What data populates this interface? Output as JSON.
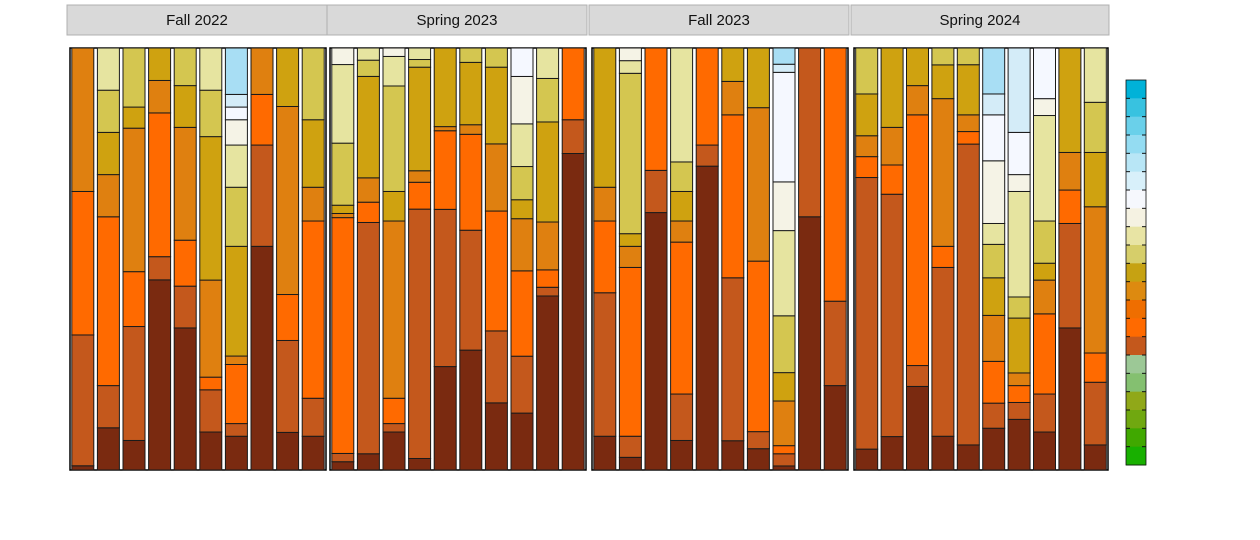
{
  "chart_data": {
    "type": "bar",
    "stacked": true,
    "normalized": true,
    "title": "",
    "xlabel": "",
    "ylabel": "",
    "ylim": [
      0,
      100
    ],
    "facets": [
      {
        "label": "Fall 2022",
        "bars": [
          [
            1,
            31,
            34,
            34
          ],
          [
            10,
            10,
            40,
            10,
            10,
            10,
            10
          ],
          [
            7,
            27,
            13,
            34,
            5,
            14
          ],
          [
            41,
            5,
            31,
            7,
            7
          ],
          [
            34,
            10,
            11,
            27,
            10,
            9
          ],
          [
            9,
            10,
            3,
            23,
            34,
            11,
            10
          ],
          [
            8,
            3,
            14,
            2,
            26,
            14,
            10,
            6,
            3,
            3,
            11
          ],
          [
            53,
            24,
            12,
            11
          ],
          [
            9,
            22,
            11,
            45,
            14
          ],
          [
            8,
            9,
            42,
            8,
            16,
            17
          ]
        ]
      },
      {
        "label": "Spring 2023",
        "bars": [
          [
            2,
            2,
            57,
            1,
            2,
            15,
            19,
            4
          ],
          [
            4,
            57,
            5,
            6,
            25,
            4,
            3
          ],
          [
            9,
            2,
            6,
            42,
            7,
            25,
            7,
            2
          ],
          [
            3,
            65,
            7,
            3,
            27,
            2,
            3
          ],
          [
            25,
            38,
            19,
            1,
            19
          ],
          [
            25,
            25,
            20,
            2,
            13,
            3
          ],
          [
            14,
            15,
            25,
            14,
            16,
            4
          ],
          [
            12,
            12,
            18,
            11,
            4,
            7,
            9,
            10,
            6
          ],
          [
            40,
            2,
            4,
            11,
            23,
            10,
            7
          ],
          [
            75,
            8,
            17
          ]
        ]
      },
      {
        "label": "Fall 2023",
        "bars": [
          [
            8,
            34,
            17,
            8,
            33
          ],
          [
            3,
            5,
            40,
            5,
            3,
            38,
            3,
            3
          ],
          [
            61,
            10,
            29
          ],
          [
            7,
            11,
            36,
            5,
            7,
            7,
            27
          ],
          [
            72,
            5,
            23
          ],
          [
            7,
            39,
            39,
            8,
            8
          ],
          [
            5,
            4,
            40,
            36,
            14
          ],
          [
            1,
            3,
            2,
            11,
            7,
            14,
            21,
            12,
            27,
            2,
            4
          ],
          [
            60,
            40
          ],
          [
            20,
            20,
            60
          ]
        ]
      },
      {
        "label": "Spring 2024",
        "bars": [
          [
            5,
            65,
            5,
            5,
            10,
            11
          ],
          [
            8,
            58,
            7,
            9,
            19
          ],
          [
            20,
            5,
            60,
            7,
            9
          ],
          [
            8,
            40,
            5,
            35,
            8,
            4
          ],
          [
            6,
            72,
            3,
            4,
            12,
            4
          ],
          [
            10,
            6,
            10,
            11,
            9,
            8,
            5,
            15,
            11,
            5,
            11
          ],
          [
            12,
            4,
            4,
            3,
            13,
            5,
            25,
            4,
            10,
            20
          ],
          [
            9,
            9,
            19,
            8,
            4,
            10,
            25,
            4,
            12
          ],
          [
            34,
            25,
            8,
            9,
            25
          ],
          [
            6,
            15,
            7,
            35,
            13,
            12,
            13
          ]
        ]
      }
    ],
    "stack_colors": [
      "#7a2a10",
      "#c4581c",
      "#ff6a00",
      "#df8010",
      "#cfa210",
      "#d4c650",
      "#e6e4a0",
      "#f5f3e6",
      "#f5f8ff",
      "#d4ecf8",
      "#a8def4",
      "#7ad0ec",
      "#48c4e4",
      "#10b0da"
    ],
    "legend": {
      "position": "right",
      "colors": [
        "#00b2d8",
        "#38c2e0",
        "#6ad0ea",
        "#94dcf2",
        "#b8e6f6",
        "#d8f0fa",
        "#f6f8fd",
        "#f5f2e2",
        "#e8e4a4",
        "#d6ce6a",
        "#c6a212",
        "#dd8a10",
        "#ef6e00",
        "#ff6a00",
        "#c4581c",
        "#9cc896",
        "#84c070",
        "#90a818",
        "#70a810",
        "#40a800",
        "#18b000"
      ]
    }
  }
}
